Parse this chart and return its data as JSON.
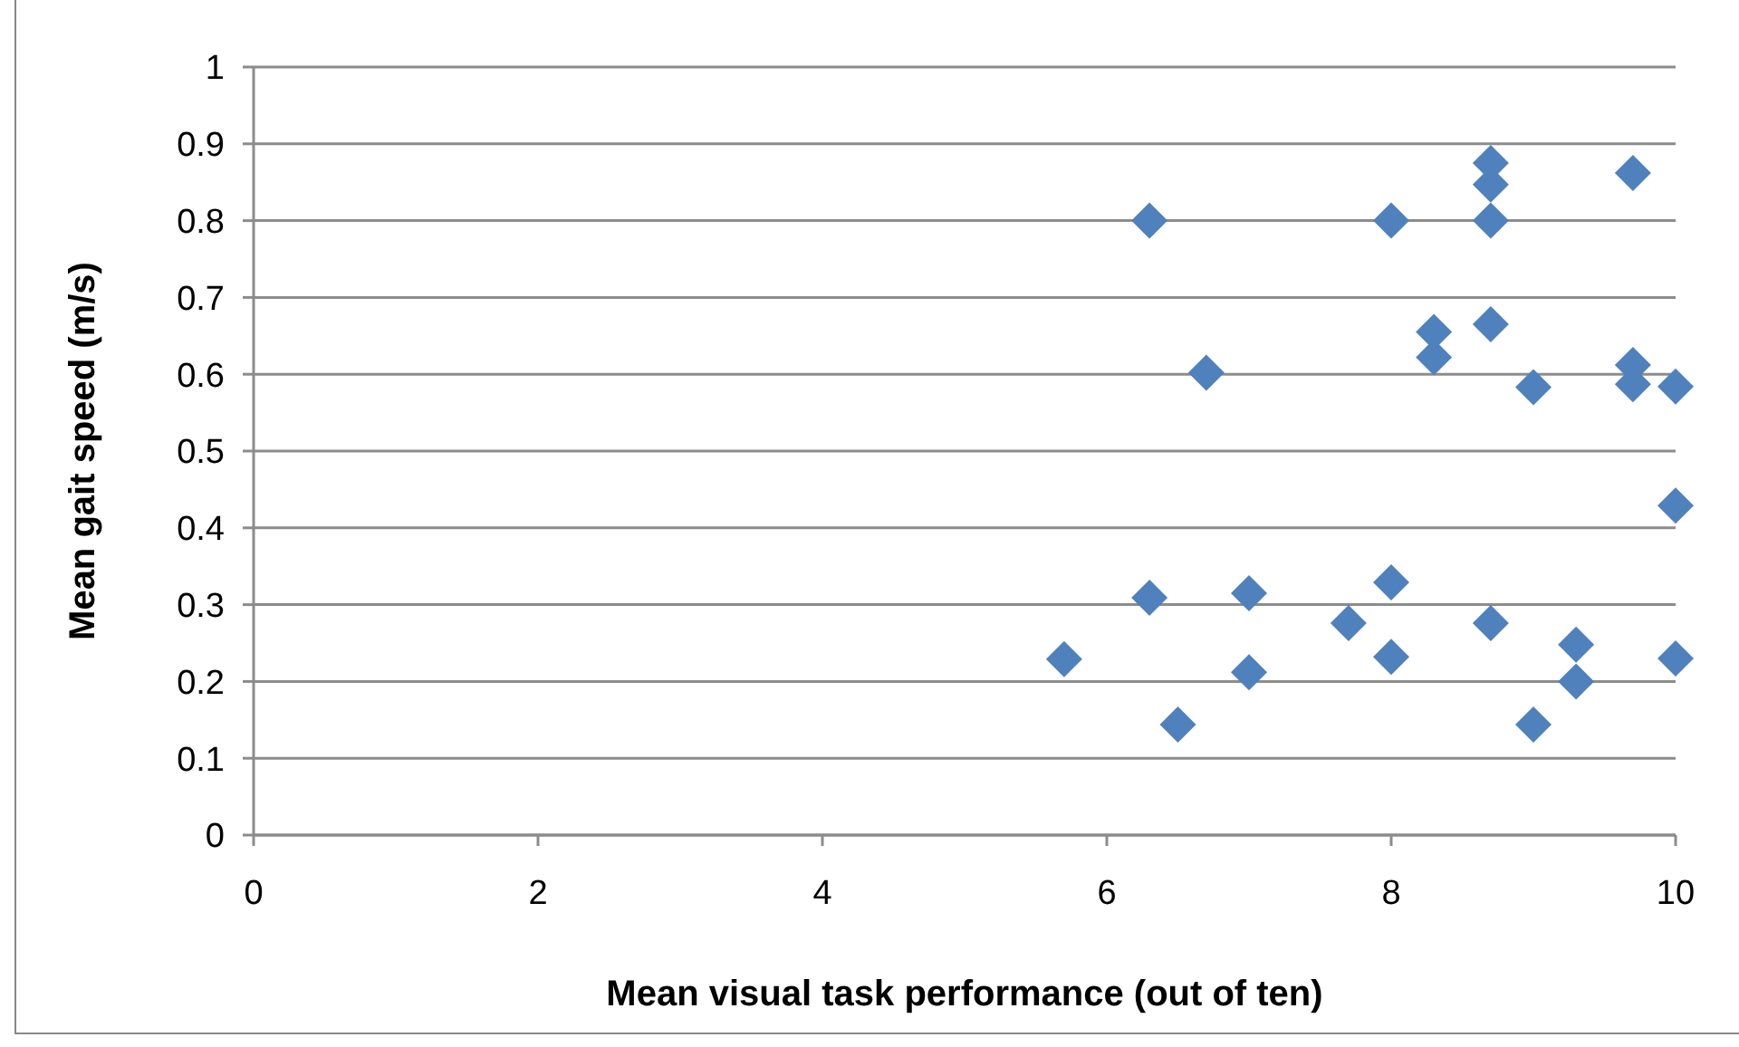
{
  "chart_data": {
    "type": "scatter",
    "xlabel": "Mean visual task performance (out of ten)",
    "ylabel": "Mean gait speed (m/s)",
    "xlim": [
      0,
      10
    ],
    "xticks": [
      0,
      2,
      4,
      6,
      8,
      10
    ],
    "ylim": [
      0,
      1
    ],
    "yticks": [
      0,
      0.1,
      0.2,
      0.3,
      0.4,
      0.5,
      0.6,
      0.7,
      0.8,
      0.9,
      1
    ],
    "grid": "y",
    "marker": "diamond",
    "series": [
      {
        "color": "#4f81bd",
        "x": [
          6.3,
          8,
          8.7,
          8.7,
          8.7,
          9.7,
          8.7,
          8.3,
          8.3,
          6.7,
          9,
          9.7,
          9.7,
          10,
          10,
          6.3,
          7,
          8,
          7.7,
          8.7,
          5.7,
          7,
          8,
          9.3,
          9.3,
          10,
          6.5,
          9
        ],
        "values": [
          0.8,
          0.8,
          0.875,
          0.847,
          0.8,
          0.862,
          0.665,
          0.655,
          0.622,
          0.602,
          0.583,
          0.612,
          0.587,
          0.584,
          0.429,
          0.309,
          0.315,
          0.329,
          0.276,
          0.276,
          0.229,
          0.212,
          0.232,
          0.248,
          0.2,
          0.23,
          0.144,
          0.144
        ]
      }
    ]
  }
}
